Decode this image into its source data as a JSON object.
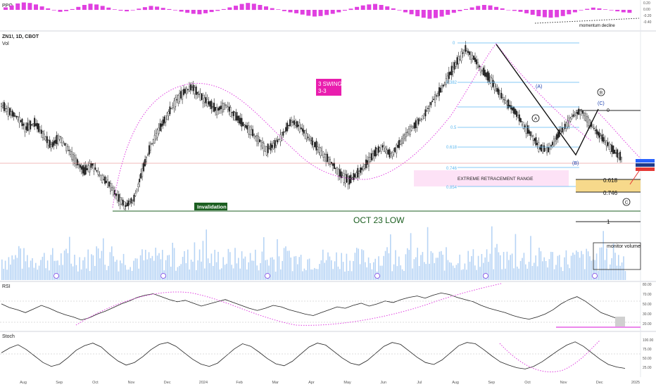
{
  "header": {
    "symbol_line": "ZN1!, 1D, CBOT",
    "vol_label": "Vol",
    "ppo_label": "PPO",
    "rsi_label": "RSI",
    "stoch_label": "Stoch"
  },
  "annotations": {
    "swing_title": "3 SWING",
    "swing_sub": "3-3",
    "invalidation": "Invalidation",
    "oct_low": "OCT 23 LOW",
    "extreme_range": "EXTREME RETRACEMENT RANGE",
    "momentum_decline": "momentum decline",
    "monitor_volume": "monitor volume",
    "wave_A_paren": "(A)",
    "wave_B_paren": "(B)",
    "wave_C_paren": "(C)",
    "wave_A_circle": "A",
    "wave_B_circle": "B",
    "wave_C_circle": "C",
    "fib_right_0": "0",
    "fib_right_618": "0.618",
    "fib_right_746": "0.746",
    "fib_right_1": "1"
  },
  "colors": {
    "up": "#26a69a",
    "candle": "#222222",
    "magenta": "#e040e0",
    "fib_line": "#5bb8f0",
    "volume": "#b7d4f5",
    "green_line": "#1b5e20",
    "invalidation_bg": "#1b5e20",
    "extreme_bg": "#fde2f6",
    "gold_zone": "#f7d98b",
    "swing_bg": "#e91eae",
    "price_tag_blue": "#2962ff",
    "price_tag_red": "#e53935"
  },
  "chart_data": [
    {
      "type": "bar",
      "panel": "PPO",
      "series": [
        {
          "values": [
            0.1,
            0.18,
            0.26,
            0.3,
            0.28,
            0.22,
            0.14,
            0.06,
            -0.02,
            -0.08,
            -0.05,
            0.03,
            0.12,
            0.2,
            0.25,
            0.22,
            0.16,
            0.09,
            0.02,
            -0.03,
            -0.06,
            -0.02,
            0.05,
            0.11,
            0.16,
            0.13,
            0.08,
            0.03,
            -0.02,
            -0.07,
            -0.12,
            -0.16,
            -0.18,
            -0.14,
            -0.09,
            -0.04,
            0.03,
            0.1,
            0.17,
            0.24,
            0.28,
            0.25,
            0.2,
            0.14,
            0.07,
            0.02,
            -0.05,
            -0.1,
            -0.14,
            -0.19,
            -0.24,
            -0.27,
            -0.25,
            -0.21,
            -0.16,
            -0.1,
            -0.03,
            0.05,
            0.12,
            0.18,
            0.22,
            0.24,
            0.2,
            0.14,
            0.06,
            -0.02,
            -0.1,
            -0.18,
            -0.26,
            -0.32,
            -0.36,
            -0.33,
            -0.27,
            -0.2,
            -0.12,
            -0.05,
            0.03,
            0.1,
            0.16,
            0.2,
            0.18,
            0.12,
            0.06,
            0.0,
            -0.04,
            -0.08,
            -0.14,
            -0.2,
            -0.26,
            -0.3,
            -0.32,
            -0.3,
            -0.25,
            -0.18,
            -0.1,
            -0.02,
            0.04,
            0.09,
            0.06,
            0.02,
            -0.02,
            -0.06,
            -0.1,
            -0.12
          ]
        }
      ],
      "ticks": [
        "0.20",
        "0.00",
        "-0.20",
        "-0.40"
      ],
      "annotation": "momentum decline"
    },
    {
      "type": "line",
      "panel": "Price",
      "title": "ZN1!, 1D, CBOT",
      "x_ticks": [
        "Aug",
        "Sep",
        "Oct",
        "Nov",
        "Dec",
        "2024",
        "Feb",
        "Mar",
        "Apr",
        "May",
        "Jun",
        "Jul",
        "Aug",
        "Sep",
        "Oct",
        "Nov",
        "Dec",
        "2025"
      ],
      "close_approx": [
        111.2,
        110.8,
        110.5,
        109.9,
        110.2,
        109.6,
        108.9,
        109.4,
        108.8,
        108.1,
        107.5,
        107.9,
        107.2,
        106.8,
        106.1,
        105.6,
        106.0,
        107.5,
        108.9,
        109.8,
        110.6,
        111.4,
        111.9,
        112.2,
        111.7,
        111.3,
        110.9,
        111.2,
        110.7,
        110.2,
        109.8,
        109.3,
        108.7,
        109.0,
        109.6,
        110.3,
        110.0,
        109.4,
        108.9,
        108.4,
        107.9,
        107.3,
        107.0,
        107.4,
        107.9,
        108.5,
        108.9,
        108.4,
        109.0,
        109.7,
        110.1,
        110.6,
        111.4,
        112.0,
        112.8,
        113.6,
        114.3,
        113.8,
        113.1,
        112.6,
        111.9,
        111.3,
        110.8,
        110.1,
        109.5,
        108.8,
        108.7,
        109.4,
        110.0,
        110.6,
        110.9,
        110.2,
        109.6,
        109.1,
        108.6,
        108.2
      ],
      "fib_retracement_levels": [
        {
          "level": "0"
        },
        {
          "level": "0.382"
        },
        {
          "level": "0.5"
        },
        {
          "level": "0.618"
        },
        {
          "level": "0.746"
        },
        {
          "level": "0.854"
        }
      ],
      "swing_projection_levels": [
        "0",
        "0.618",
        "0.746",
        "1"
      ],
      "annotations": [
        "3 SWING",
        "3-3",
        "Invalidation",
        "OCT 23 LOW",
        "EXTREME RETRACEMENT RANGE",
        "(A)",
        "(B)",
        "(C)",
        "A",
        "B",
        "C"
      ]
    },
    {
      "type": "bar",
      "panel": "Volume",
      "annotation": "monitor volume"
    },
    {
      "type": "line",
      "panel": "RSI",
      "ylim": [
        20,
        80
      ],
      "ticks": [
        "80.00",
        "70.00",
        "50.00",
        "30.00",
        "20.00"
      ],
      "values": [
        52,
        47,
        44,
        40,
        45,
        50,
        46,
        41,
        37,
        34,
        30,
        33,
        38,
        42,
        47,
        52,
        56,
        61,
        64,
        66,
        62,
        58,
        55,
        57,
        53,
        49,
        52,
        55,
        58,
        54,
        50,
        46,
        43,
        46,
        50,
        48,
        44,
        41,
        38,
        36,
        40,
        44,
        48,
        46,
        50,
        53,
        49,
        52,
        56,
        54,
        58,
        61,
        63,
        60,
        64,
        67,
        65,
        61,
        58,
        55,
        50,
        46,
        43,
        40,
        36,
        33,
        31,
        34,
        38,
        44,
        52,
        58,
        62,
        56,
        48,
        40,
        36,
        32,
        30
      ]
    },
    {
      "type": "line",
      "panel": "Stoch",
      "ylim": [
        0,
        100
      ],
      "ticks": [
        "100.00",
        "75.00",
        "50.00",
        "25.00"
      ],
      "values": [
        60,
        75,
        85,
        70,
        50,
        30,
        18,
        25,
        45,
        68,
        82,
        90,
        78,
        55,
        35,
        22,
        30,
        48,
        70,
        86,
        92,
        80,
        60,
        40,
        25,
        18,
        28,
        50,
        72,
        88,
        80,
        62,
        42,
        26,
        20,
        34,
        56,
        78,
        90,
        84,
        64,
        44,
        28,
        22,
        36,
        58,
        80,
        92,
        86,
        66,
        46,
        30,
        24,
        38,
        60,
        82,
        92,
        88,
        70,
        50,
        32,
        22,
        14,
        10,
        18,
        32,
        50,
        68,
        84,
        94,
        80,
        60,
        40,
        24,
        16,
        12
      ]
    }
  ]
}
